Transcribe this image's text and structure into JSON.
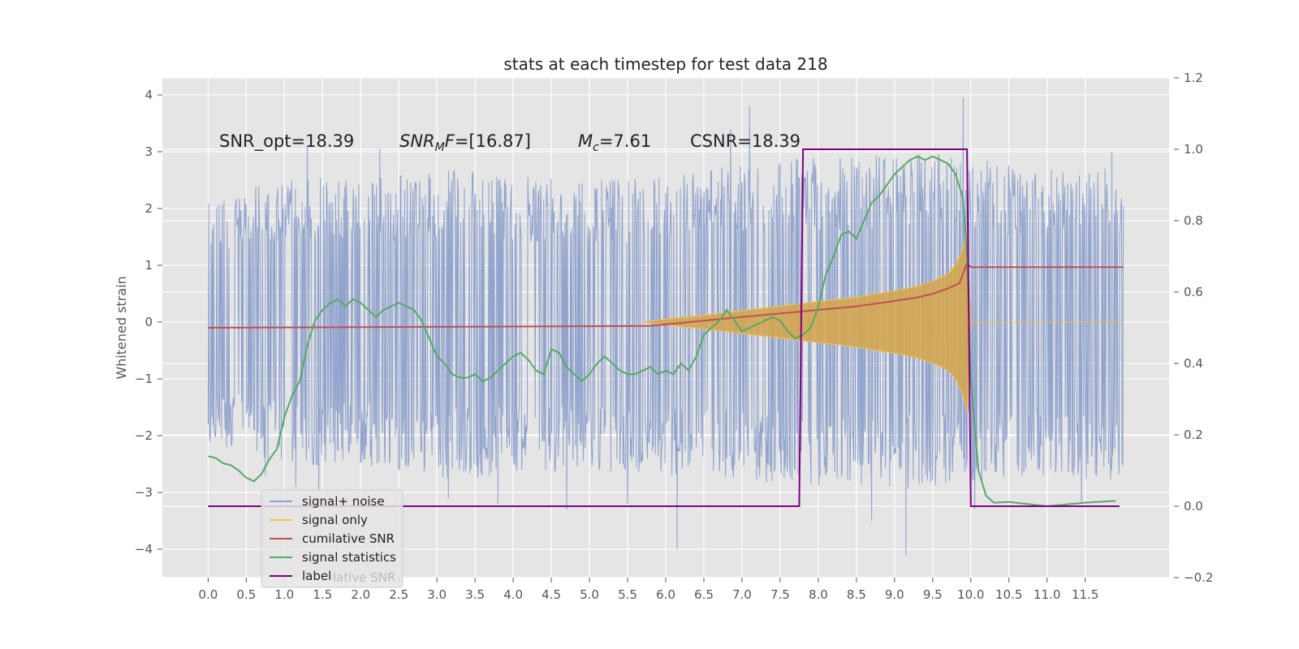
{
  "chart_data": {
    "type": "line",
    "title": "stats at each timestep for test data 218",
    "ylabel": "Whitened strain",
    "xlabel": "",
    "xlim": [
      -0.6,
      12.6
    ],
    "ylim": [
      -4.5,
      4.3
    ],
    "y2lim": [
      -0.2,
      1.2
    ],
    "grid": true,
    "x_ticks": [
      0.0,
      0.5,
      1.0,
      1.5,
      2.0,
      2.5,
      3.0,
      3.5,
      4.0,
      4.5,
      5.0,
      5.5,
      6.0,
      6.5,
      7.0,
      7.5,
      8.0,
      8.5,
      9.0,
      9.5,
      10.0,
      10.5,
      11.0,
      11.5
    ],
    "x_tick_labels": [
      "0.0",
      "0.5",
      "1.0",
      "1.5",
      "2.0",
      "2.5",
      "3.0",
      "3.5",
      "4.0",
      "4.5",
      "5.0",
      "5.5",
      "6.0",
      "6.5",
      "7.0",
      "7.5",
      "8.0",
      "8.5",
      "9.0",
      "9.5",
      "10.0",
      "10.5",
      "11.0",
      "11.5"
    ],
    "y_ticks": [
      -4,
      -3,
      -2,
      -1,
      0,
      1,
      2,
      3,
      4
    ],
    "y_tick_labels": [
      "−4",
      "−3",
      "−2",
      "−1",
      "0",
      "1",
      "2",
      "3",
      "4"
    ],
    "y2_ticks": [
      -0.2,
      0.0,
      0.2,
      0.4,
      0.6,
      0.8,
      1.0,
      1.2
    ],
    "y2_tick_labels": [
      "−0.2",
      "0.0",
      "0.2",
      "0.4",
      "0.6",
      "0.8",
      "1.0",
      "1.2"
    ],
    "annotations": [
      {
        "label": "SNR_opt",
        "sub": "",
        "value": "=18.39",
        "italic": false
      },
      {
        "label": "SNR",
        "sub": "M",
        "suffix": "F",
        "value": "=[16.87]",
        "italic": true
      },
      {
        "label": "M",
        "sub": "c",
        "value": "=7.61",
        "italic": true
      },
      {
        "label": "CSNR",
        "sub": "",
        "value": "=18.39",
        "italic": false
      }
    ],
    "legend_placement": "lower-left",
    "legend": [
      {
        "label": "signal+ noise",
        "color": "#8da0cb"
      },
      {
        "label": "signal only",
        "color": "#f2c14e"
      },
      {
        "label": "cumilative SNR",
        "color": "#c44e52"
      },
      {
        "label": "signal statistics",
        "color": "#55a868"
      },
      {
        "label": "label",
        "color": "#800080"
      }
    ],
    "legend_ghost_text": "lative SNR",
    "series": [
      {
        "name": "signal+ noise",
        "axis": "left",
        "color": "#8da0cb",
        "x_range": [
          0.0,
          12.0
        ],
        "envelope": {
          "x": [
            0,
            1,
            2,
            3,
            4,
            5,
            6,
            7,
            8,
            9,
            10,
            11,
            12
          ],
          "upper": [
            2.1,
            2.6,
            2.5,
            2.7,
            2.6,
            2.5,
            2.6,
            2.8,
            2.9,
            3.0,
            2.9,
            2.7,
            2.8
          ],
          "lower": [
            -2.1,
            -2.6,
            -2.5,
            -2.8,
            -2.7,
            -2.6,
            -2.7,
            -2.8,
            -2.9,
            -3.0,
            -2.8,
            -2.7,
            -2.9
          ]
        },
        "spikes": [
          [
            0.75,
            -2.7
          ],
          [
            1.15,
            -2.9
          ],
          [
            1.3,
            3.1
          ],
          [
            1.45,
            -3.0
          ],
          [
            2.25,
            3.05
          ],
          [
            3.15,
            -3.1
          ],
          [
            3.8,
            -3.2
          ],
          [
            4.7,
            -3.3
          ],
          [
            5.5,
            -3.2
          ],
          [
            6.0,
            1.1
          ],
          [
            6.15,
            -4.0
          ],
          [
            6.85,
            3.4
          ],
          [
            7.1,
            3.8
          ],
          [
            7.5,
            2.8
          ],
          [
            8.7,
            -3.5
          ],
          [
            9.15,
            -4.1
          ],
          [
            9.9,
            3.95
          ],
          [
            10.05,
            -3.3
          ],
          [
            11.45,
            -3.2
          ],
          [
            11.85,
            3.0
          ]
        ]
      },
      {
        "name": "signal only",
        "axis": "left",
        "color": "#f2c14e",
        "x": [
          5.7,
          6.0,
          6.5,
          7.0,
          7.5,
          8.0,
          8.5,
          9.0,
          9.3,
          9.5,
          9.7,
          9.8,
          9.85,
          9.9,
          9.95,
          10.0,
          12.0
        ],
        "amplitude": [
          0.0,
          0.05,
          0.12,
          0.2,
          0.28,
          0.36,
          0.44,
          0.55,
          0.63,
          0.72,
          0.85,
          1.0,
          1.15,
          1.3,
          1.6,
          0.0,
          0.0
        ]
      },
      {
        "name": "cumilative SNR",
        "axis": "right",
        "color": "#c44e52",
        "x": [
          0.0,
          5.8,
          6.5,
          7.0,
          7.5,
          8.0,
          8.5,
          9.0,
          9.3,
          9.5,
          9.7,
          9.85,
          9.95,
          10.0,
          12.0
        ],
        "values": [
          0.5,
          0.505,
          0.52,
          0.53,
          0.54,
          0.55,
          0.56,
          0.575,
          0.585,
          0.595,
          0.61,
          0.625,
          0.68,
          0.67,
          0.67
        ]
      },
      {
        "name": "signal statistics",
        "axis": "right",
        "color": "#55a868",
        "x": [
          0.0,
          0.1,
          0.2,
          0.3,
          0.4,
          0.5,
          0.6,
          0.7,
          0.8,
          0.9,
          1.0,
          1.1,
          1.2,
          1.3,
          1.4,
          1.5,
          1.6,
          1.7,
          1.8,
          1.9,
          2.0,
          2.1,
          2.2,
          2.3,
          2.4,
          2.5,
          2.6,
          2.7,
          2.8,
          2.9,
          3.0,
          3.1,
          3.2,
          3.3,
          3.4,
          3.5,
          3.6,
          3.7,
          3.8,
          3.9,
          4.0,
          4.1,
          4.2,
          4.3,
          4.4,
          4.5,
          4.6,
          4.7,
          4.8,
          4.9,
          5.0,
          5.1,
          5.2,
          5.3,
          5.4,
          5.5,
          5.6,
          5.7,
          5.8,
          5.9,
          6.0,
          6.1,
          6.2,
          6.3,
          6.4,
          6.5,
          6.6,
          6.7,
          6.8,
          6.9,
          7.0,
          7.1,
          7.2,
          7.3,
          7.4,
          7.5,
          7.6,
          7.7,
          7.8,
          7.9,
          8.0,
          8.1,
          8.2,
          8.3,
          8.4,
          8.5,
          8.6,
          8.7,
          8.8,
          8.9,
          9.0,
          9.1,
          9.2,
          9.3,
          9.4,
          9.5,
          9.6,
          9.7,
          9.8,
          9.9,
          9.95,
          10.0,
          10.1,
          10.2,
          10.3,
          10.5,
          11.0,
          11.5,
          11.9
        ],
        "values": [
          0.14,
          0.135,
          0.12,
          0.115,
          0.1,
          0.08,
          0.07,
          0.09,
          0.13,
          0.16,
          0.25,
          0.31,
          0.35,
          0.45,
          0.52,
          0.55,
          0.57,
          0.58,
          0.56,
          0.58,
          0.57,
          0.55,
          0.53,
          0.55,
          0.56,
          0.57,
          0.56,
          0.55,
          0.52,
          0.47,
          0.42,
          0.4,
          0.37,
          0.36,
          0.36,
          0.37,
          0.35,
          0.36,
          0.38,
          0.4,
          0.42,
          0.43,
          0.41,
          0.38,
          0.37,
          0.44,
          0.43,
          0.39,
          0.37,
          0.35,
          0.37,
          0.4,
          0.42,
          0.4,
          0.38,
          0.37,
          0.37,
          0.38,
          0.39,
          0.37,
          0.38,
          0.37,
          0.4,
          0.38,
          0.42,
          0.48,
          0.5,
          0.52,
          0.55,
          0.52,
          0.49,
          0.5,
          0.51,
          0.52,
          0.53,
          0.52,
          0.49,
          0.47,
          0.48,
          0.5,
          0.56,
          0.65,
          0.7,
          0.76,
          0.77,
          0.75,
          0.8,
          0.85,
          0.87,
          0.9,
          0.93,
          0.95,
          0.97,
          0.98,
          0.97,
          0.98,
          0.97,
          0.96,
          0.93,
          0.86,
          0.7,
          0.35,
          0.1,
          0.03,
          0.01,
          0.012,
          0.0,
          0.01,
          0.015
        ]
      },
      {
        "name": "label",
        "axis": "right",
        "color": "#800080",
        "x": [
          0.0,
          7.75,
          7.8,
          9.95,
          10.0,
          11.95
        ],
        "values": [
          0.0,
          0.0,
          1.0,
          1.0,
          0.0,
          0.0
        ]
      }
    ]
  }
}
